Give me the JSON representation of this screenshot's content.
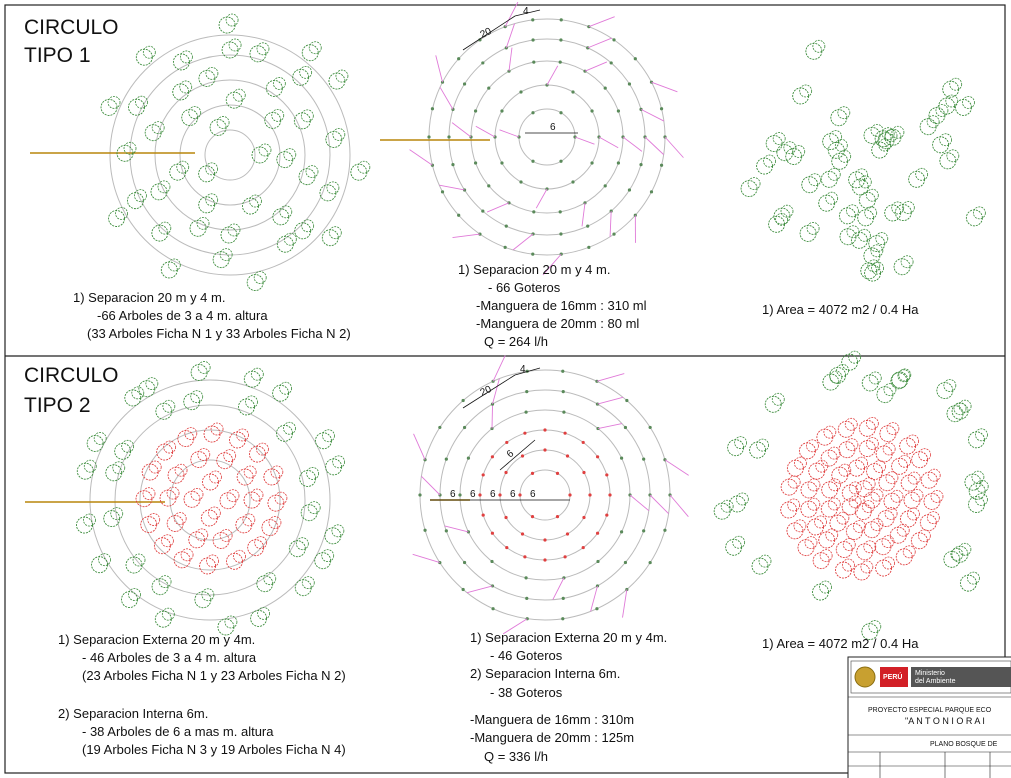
{
  "panel_1": {
    "heading": [
      "CIRCULO",
      "TIPO 1"
    ],
    "dims": [
      "20",
      "4",
      "6"
    ],
    "trees_notes": [
      "1)  Separacion 20 m y 4 m.",
      "-66 Arboles de 3 a 4 m. altura",
      "(33 Arboles Ficha N 1 y 33 Arboles Ficha N 2)"
    ],
    "irrigation_notes": [
      "1) Separacion 20 m y 4 m.",
      "- 66 Goteros",
      "-Manguera de 16mm : 310 ml",
      "-Manguera de 20mm : 80 ml",
      "Q = 264 l/h"
    ],
    "area_note": "1) Area = 4072 m2 / 0.4 Ha"
  },
  "panel_2": {
    "heading": [
      "CIRCULO",
      "TIPO 2"
    ],
    "dims": [
      "20",
      "4",
      "6"
    ],
    "axis_dims": [
      "6",
      "6",
      "6",
      "6",
      "6"
    ],
    "trees_notes": [
      "1) Separacion Externa 20 m y 4m.",
      "- 46 Arboles de 3 a 4 m. altura",
      "(23 Arboles Ficha N 1 y 23 Arboles Ficha N 2)",
      "2) Separacion Interna 6m.",
      "- 38 Arboles de 6 a mas m. altura",
      "(19 Arboles Ficha N 3 y 19 Arboles Ficha N 4)"
    ],
    "irrigation_notes": [
      "1) Separacion Externa 20 m y 4m.",
      "- 46 Goteros",
      "2) Separacion Interna 6m.",
      "- 38 Goteros",
      "-Manguera de 16mm :  310m",
      "-Manguera de 20mm :  125m",
      "Q = 336 l/h"
    ],
    "area_note": "1) Area = 4072 m2 / 0.4 Ha"
  },
  "title_block": {
    "country": "PERÚ",
    "ministry": [
      "Ministerio",
      "del Ambiente"
    ],
    "project": [
      "PROYECTO ESPECIAL PARQUE ECO",
      "\"A N T O N I O   R A I"
    ],
    "plan": "PLANO BOSQUE DE"
  }
}
